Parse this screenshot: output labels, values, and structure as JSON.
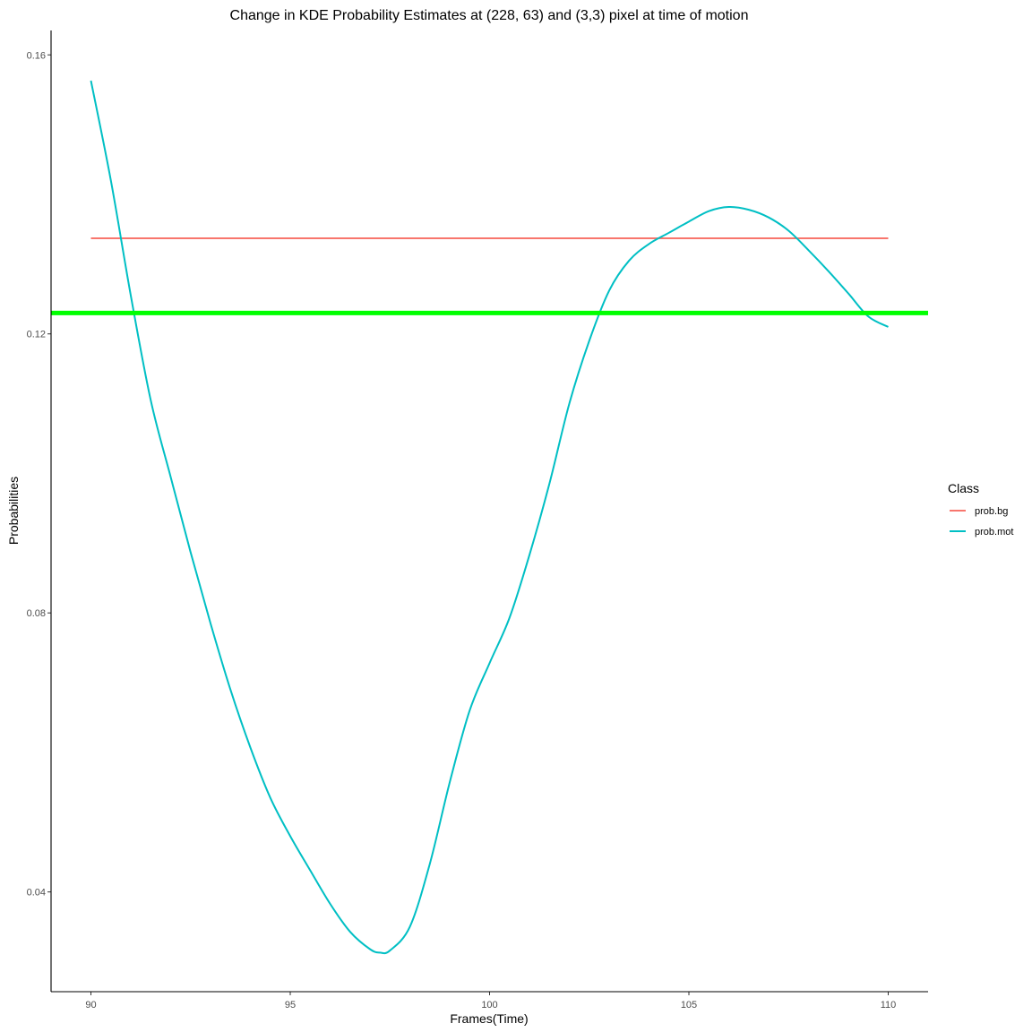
{
  "chart_data": {
    "type": "line",
    "title": "Change in KDE Probability Estimates at (228, 63) and (3,3) pixel at time of motion",
    "xlabel": "Frames(Time)",
    "ylabel": "Probabilities",
    "xlim": [
      89,
      111
    ],
    "ylim": [
      0.0257,
      0.1635
    ],
    "x_ticks": [
      90,
      95,
      100,
      105,
      110
    ],
    "x_tick_labels": [
      "90",
      "95",
      "100",
      "105",
      "110"
    ],
    "y_ticks": [
      0.04,
      0.08,
      0.12,
      0.16
    ],
    "y_tick_labels": [
      "0.04",
      "0.08",
      "0.12",
      "0.16"
    ],
    "grid": false,
    "legend": {
      "title": "Class",
      "position": "right"
    },
    "series": [
      {
        "name": "prob.bg",
        "color": "#F8766D",
        "x": [
          90,
          110
        ],
        "y": [
          0.1337,
          0.1337
        ]
      },
      {
        "name": "prob.mot",
        "color": "#00BFC4",
        "x": [
          90,
          90.5,
          91,
          91.5,
          92,
          92.5,
          93,
          93.5,
          94,
          94.5,
          95,
          95.5,
          96,
          96.5,
          97,
          97.25,
          97.5,
          98,
          98.5,
          99,
          99.5,
          100,
          100.5,
          101,
          101.5,
          102,
          102.5,
          103,
          103.5,
          104,
          104.5,
          105,
          105.5,
          106,
          106.5,
          107,
          107.5,
          108,
          108.5,
          109,
          109.5,
          110
        ],
        "y": [
          0.1563,
          0.142,
          0.1255,
          0.1105,
          0.0995,
          0.0887,
          0.0785,
          0.069,
          0.0607,
          0.0535,
          0.048,
          0.0431,
          0.0383,
          0.0343,
          0.0318,
          0.0313,
          0.0316,
          0.035,
          0.044,
          0.0557,
          0.066,
          0.0728,
          0.0793,
          0.0883,
          0.0985,
          0.11,
          0.119,
          0.1262,
          0.1305,
          0.1329,
          0.1345,
          0.1361,
          0.1376,
          0.1382,
          0.1378,
          0.1367,
          0.1348,
          0.132,
          0.129,
          0.1258,
          0.1225,
          0.121
        ]
      }
    ],
    "reference_line": {
      "y": 0.123,
      "color": "#00FF00"
    }
  }
}
